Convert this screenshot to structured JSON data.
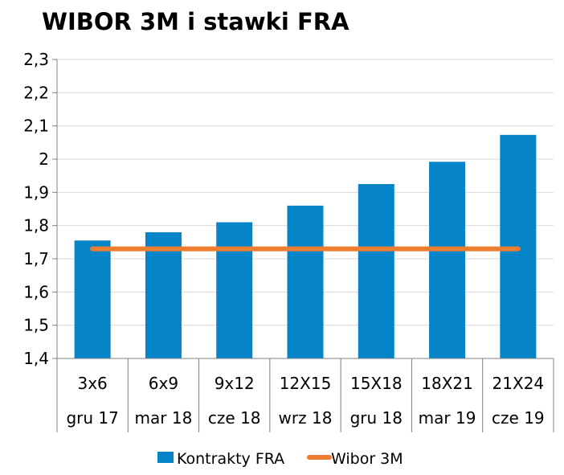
{
  "chart_data": {
    "type": "bar",
    "title": "WIBOR 3M i stawki FRA",
    "xlabel": "",
    "ylabel": "",
    "categories": [
      "3x6",
      "6x9",
      "9x12",
      "12X15",
      "15X18",
      "18X21",
      "21X24"
    ],
    "categories_secondary": [
      "gru 17",
      "mar 18",
      "cze 18",
      "wrz 18",
      "gru 18",
      "mar 19",
      "cze 19"
    ],
    "yticks": [
      "1,4",
      "1,5",
      "1,6",
      "1,7",
      "1,8",
      "1,9",
      "2",
      "2,1",
      "2,2",
      "2,3"
    ],
    "ylim": [
      1.4,
      2.3
    ],
    "grid": true,
    "legend_position": "bottom",
    "series": [
      {
        "name": "Kontrakty FRA",
        "type": "bar",
        "color": "#0585c8",
        "values": [
          1.755,
          1.78,
          1.81,
          1.86,
          1.925,
          1.992,
          2.073
        ]
      },
      {
        "name": "Wibor 3M",
        "type": "line",
        "color": "#ed7d31",
        "values": [
          1.73,
          1.73,
          1.73,
          1.73,
          1.73,
          1.73,
          1.73
        ]
      }
    ]
  }
}
